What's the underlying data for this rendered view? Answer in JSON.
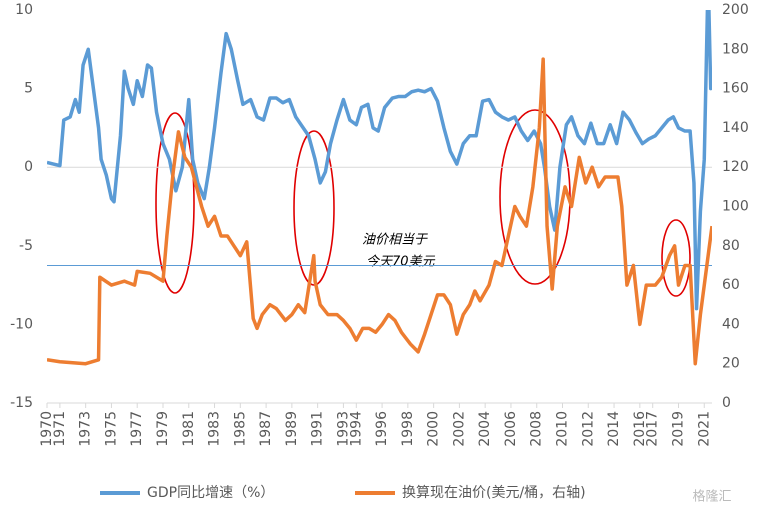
{
  "chart_data": {
    "type": "line",
    "ylim": [
      -15,
      10
    ],
    "yticks": [
      -15,
      -10,
      -5,
      0,
      5,
      10
    ],
    "y2lim": [
      0,
      200
    ],
    "y2ticks": [
      0,
      20,
      40,
      60,
      80,
      100,
      120,
      140,
      160,
      180,
      200
    ],
    "xlim": [
      1970,
      2021.6
    ],
    "xticks": [
      1970,
      1971,
      1973,
      1975,
      1977,
      1979,
      1981,
      1983,
      1985,
      1987,
      1989,
      1991,
      1993,
      1994,
      1996,
      1998,
      2000,
      2002,
      2004,
      2006,
      2008,
      2010,
      2012,
      2014,
      2016,
      2017,
      2019,
      2021
    ],
    "annotations": [
      "油价相当于",
      "今天70美元"
    ],
    "reference_line": {
      "axis": "y2",
      "value": 70,
      "color": "#5b9bd5"
    },
    "watermark": "格隆汇",
    "legend": "bottom",
    "series": [
      {
        "name": "GDP同比增速（%）",
        "color": "#5b9bd5",
        "x": [
          1970,
          1970.5,
          1971,
          1971.3,
          1971.8,
          1972.2,
          1972.5,
          1972.8,
          1973.2,
          1973.6,
          1974,
          1974.2,
          1974.6,
          1975,
          1975.2,
          1975.7,
          1976,
          1976.3,
          1976.7,
          1977,
          1977.4,
          1977.8,
          1978.1,
          1978.5,
          1979,
          1979.5,
          1980,
          1980.5,
          1981,
          1981.3,
          1981.7,
          1982.2,
          1982.6,
          1983,
          1983.5,
          1983.9,
          1984.3,
          1984.8,
          1985.2,
          1985.8,
          1986.3,
          1986.8,
          1987.3,
          1987.8,
          1988.3,
          1988.8,
          1989.3,
          1989.8,
          1990.3,
          1990.8,
          1991.2,
          1991.6,
          1992,
          1992.5,
          1993,
          1993.5,
          1994,
          1994.4,
          1994.9,
          1995.3,
          1995.7,
          1996.2,
          1996.8,
          1997.3,
          1997.8,
          1998.3,
          1998.8,
          1999.3,
          1999.8,
          2000.3,
          2000.8,
          2001.3,
          2001.8,
          2002.3,
          2002.8,
          2003.3,
          2003.8,
          2004.3,
          2004.8,
          2005.3,
          2005.8,
          2006.3,
          2006.8,
          2007.3,
          2007.8,
          2008.3,
          2008.6,
          2009,
          2009.4,
          2009.8,
          2010.3,
          2010.7,
          2011.2,
          2011.7,
          2012.2,
          2012.7,
          2013.2,
          2013.7,
          2014.2,
          2014.7,
          2015.2,
          2015.7,
          2016.2,
          2016.7,
          2017.2,
          2017.7,
          2018.2,
          2018.6,
          2019,
          2019.5,
          2019.9,
          2020.2,
          2020.4,
          2020.7,
          2021,
          2021.3,
          2021.5,
          2021.6
        ],
        "values": [
          0.3,
          0.2,
          0.1,
          3,
          3.2,
          4.3,
          3.5,
          6.5,
          7.5,
          5,
          2.5,
          0.5,
          -0.5,
          -2,
          -2.2,
          2,
          6.1,
          5,
          4,
          5.5,
          4.5,
          6.5,
          6.3,
          3.5,
          1.5,
          0.5,
          -1.5,
          0,
          4.3,
          0.5,
          -1,
          -2,
          0,
          2.5,
          6,
          8.5,
          7.5,
          5.5,
          4,
          4.3,
          3.2,
          3,
          4.4,
          4.4,
          4.1,
          4.3,
          3.2,
          2.6,
          2,
          0.5,
          -1,
          -0.3,
          1.5,
          3,
          4.3,
          3,
          2.7,
          3.8,
          4,
          2.5,
          2.3,
          3.8,
          4.4,
          4.5,
          4.5,
          4.8,
          4.9,
          4.8,
          5,
          4.2,
          2.5,
          1,
          0.2,
          1.5,
          2,
          2,
          4.2,
          4.3,
          3.5,
          3.2,
          3,
          3.2,
          2.3,
          1.7,
          2.3,
          1.5,
          0,
          -2.5,
          -4,
          0,
          2.7,
          3.2,
          2,
          1.5,
          2.8,
          1.5,
          1.5,
          2.7,
          1.5,
          3.5,
          3,
          2.2,
          1.5,
          1.8,
          2,
          2.5,
          3,
          3.2,
          2.5,
          2.3,
          2.3,
          -1,
          -9,
          -2.8,
          0.5,
          12.2,
          5,
          5.5
        ]
      },
      {
        "name": "换算现在油价(美元/桶，右轴)",
        "color": "#ed7d31",
        "axis": "y2",
        "x": [
          1970,
          1971,
          1973,
          1974,
          1974.1,
          1975,
          1976,
          1976.8,
          1977,
          1978,
          1979,
          1979.3,
          1979.8,
          1980.2,
          1980.7,
          1981.2,
          1981.6,
          1982,
          1982.5,
          1983,
          1983.5,
          1984,
          1984.5,
          1985,
          1985.5,
          1986,
          1986.3,
          1986.7,
          1987.3,
          1987.8,
          1988.5,
          1989,
          1989.5,
          1990,
          1990.7,
          1990.8,
          1991.2,
          1991.8,
          1992.5,
          1993,
          1993.5,
          1994,
          1994.5,
          1995,
          1995.5,
          1996,
          1996.5,
          1997,
          1997.5,
          1998.2,
          1998.8,
          1999.3,
          1999.8,
          2000.3,
          2000.8,
          2001.3,
          2001.8,
          2002.3,
          2002.8,
          2003.2,
          2003.6,
          2004.3,
          2004.8,
          2005.3,
          2005.8,
          2006.3,
          2006.7,
          2007.2,
          2007.7,
          2008.2,
          2008.5,
          2008.8,
          2009.2,
          2009.6,
          2010.2,
          2010.7,
          2011.3,
          2011.8,
          2012.3,
          2012.8,
          2013.3,
          2013.8,
          2014.3,
          2014.6,
          2015,
          2015.5,
          2016,
          2016.5,
          2017.2,
          2017.7,
          2018.3,
          2018.7,
          2019,
          2019.5,
          2019.9,
          2020.3,
          2020.7,
          2021,
          2021.3,
          2021.6
        ],
        "values": [
          22,
          21,
          20,
          22,
          64,
          60,
          62,
          60,
          67,
          66,
          62,
          85,
          118,
          138,
          125,
          120,
          110,
          100,
          90,
          95,
          85,
          85,
          80,
          75,
          82,
          43,
          38,
          45,
          50,
          48,
          42,
          45,
          50,
          46,
          75,
          62,
          50,
          45,
          45,
          42,
          38,
          32,
          38,
          38,
          36,
          40,
          45,
          42,
          36,
          30,
          26,
          35,
          45,
          55,
          55,
          50,
          35,
          45,
          50,
          57,
          52,
          60,
          72,
          70,
          85,
          100,
          95,
          90,
          110,
          140,
          175,
          90,
          58,
          90,
          110,
          100,
          125,
          112,
          120,
          110,
          115,
          115,
          115,
          100,
          60,
          70,
          40,
          60,
          60,
          64,
          75,
          80,
          60,
          70,
          70,
          20,
          45,
          60,
          75,
          90
        ]
      }
    ]
  }
}
